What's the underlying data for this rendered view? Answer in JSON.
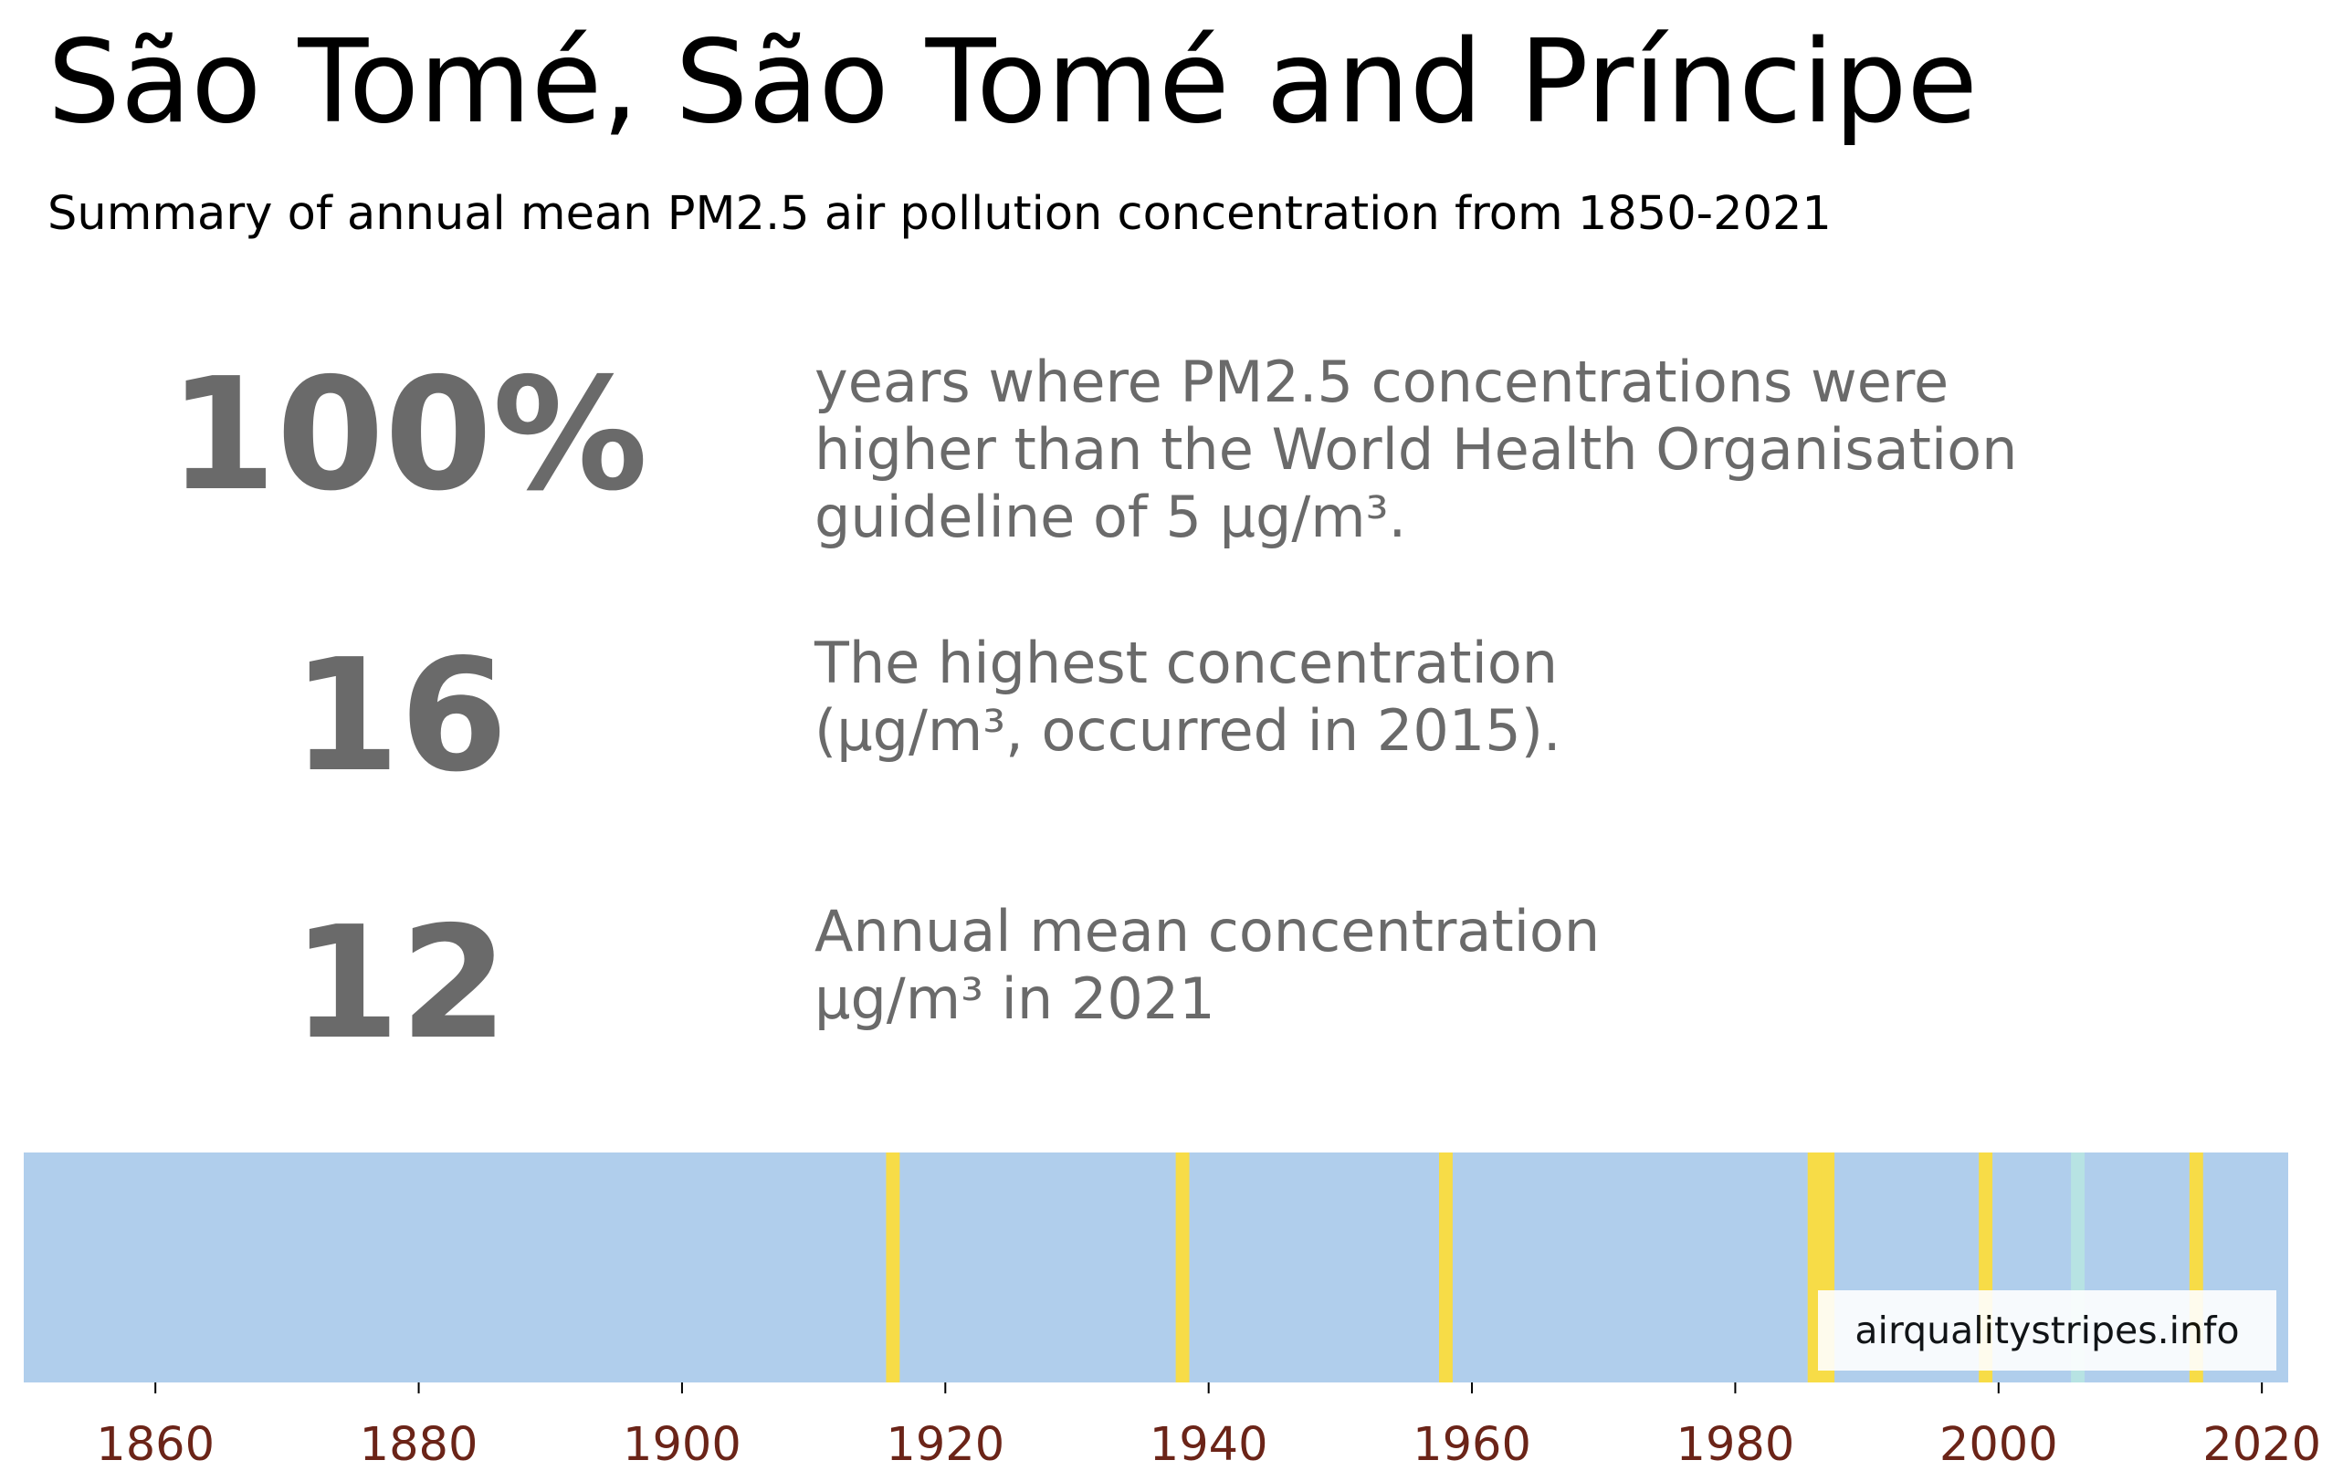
{
  "header": {
    "title": "São Tomé, São Tomé and Príncipe",
    "subtitle": "Summary of annual mean PM2.5 air pollution concentration from 1850-2021"
  },
  "stats": [
    {
      "value": "100%",
      "lines": [
        "years where PM2.5 concentrations were",
        "higher than the World Health Organisation",
        "guideline of 5 µg/m³."
      ]
    },
    {
      "value": "16",
      "lines": [
        "The highest concentration",
        "(µg/m³, occurred in 2015)."
      ]
    },
    {
      "value": "12",
      "lines": [
        "Annual mean concentration",
        "µg/m³ in 2021"
      ]
    }
  ],
  "credit": "airqualitystripes.info",
  "colors": {
    "stat_text": "#6a6a6a",
    "tick_label": "#6b2418",
    "band_base": "#b0ceec",
    "band_yellow": "#f7dc47",
    "band_teal": "#b7e3e3"
  },
  "chart_data": {
    "type": "heatmap",
    "description_of_encoding": "annual stripes; color band per year",
    "x_range": [
      1850,
      2022
    ],
    "x_ticks": [
      "1860",
      "1880",
      "1900",
      "1920",
      "1940",
      "1960",
      "1980",
      "2000",
      "2020"
    ],
    "base_color": "#b0ceec",
    "highlighted_years": [
      {
        "year": 1916,
        "color": "#f7dc47"
      },
      {
        "year": 1938,
        "color": "#f7dc47"
      },
      {
        "year": 1958,
        "color": "#f7dc47"
      },
      {
        "year": 1986,
        "color": "#f7dc47"
      },
      {
        "year": 1987,
        "color": "#f7dc47"
      },
      {
        "year": 1999,
        "color": "#f7dc47"
      },
      {
        "year": 2006,
        "color": "#b7e3e3"
      },
      {
        "year": 2015,
        "color": "#f7dc47"
      }
    ]
  }
}
